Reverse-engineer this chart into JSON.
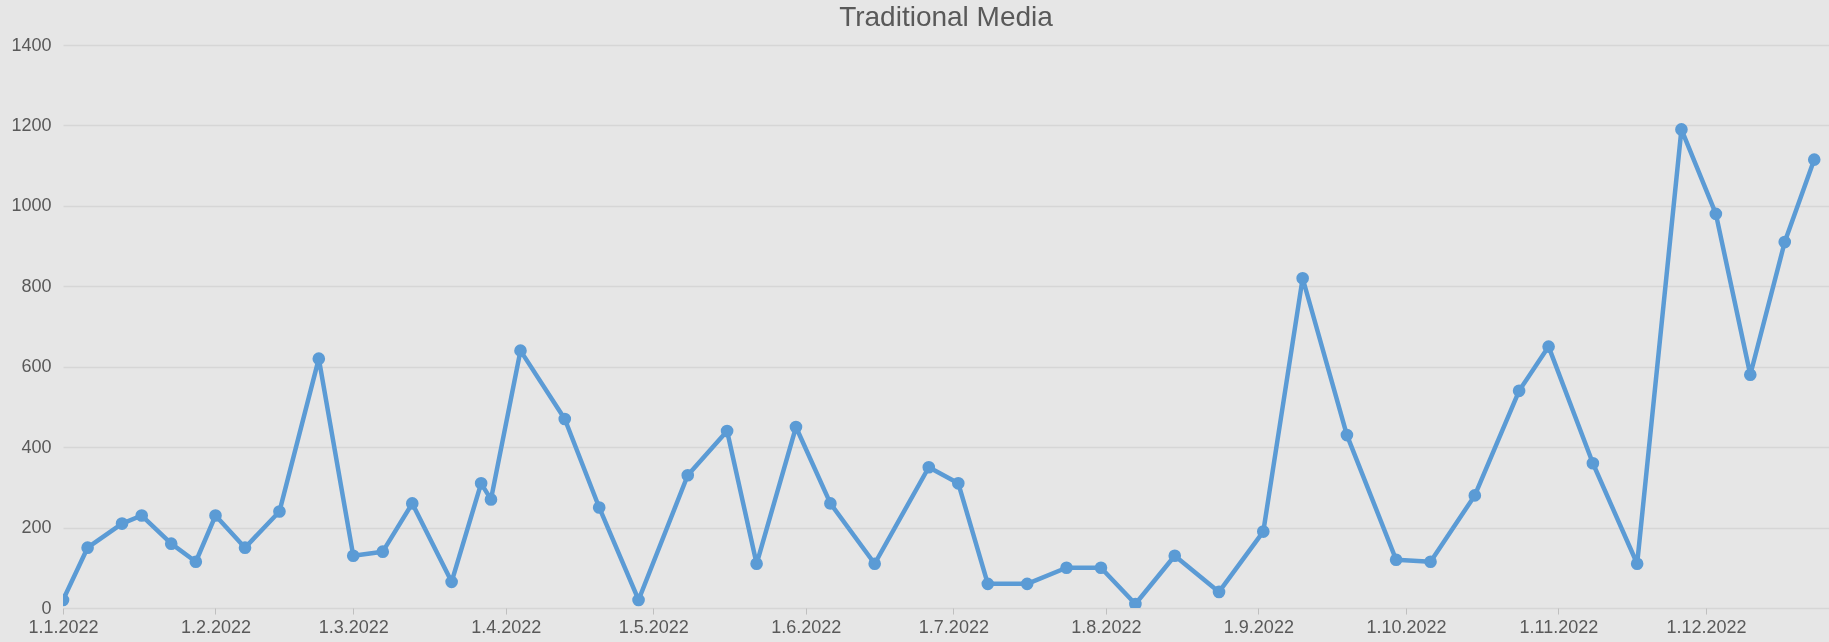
{
  "chart_data": {
    "type": "line",
    "title": "Traditional Media",
    "x": [
      "2022-01-01",
      "2022-01-06",
      "2022-01-13",
      "2022-01-17",
      "2022-01-23",
      "2022-01-28",
      "2022-02-01",
      "2022-02-07",
      "2022-02-14",
      "2022-02-22",
      "2022-03-01",
      "2022-03-07",
      "2022-03-13",
      "2022-03-21",
      "2022-03-27",
      "2022-03-29",
      "2022-04-04",
      "2022-04-13",
      "2022-04-20",
      "2022-04-28",
      "2022-05-08",
      "2022-05-16",
      "2022-05-22",
      "2022-05-30",
      "2022-06-06",
      "2022-06-15",
      "2022-06-26",
      "2022-07-02",
      "2022-07-08",
      "2022-07-16",
      "2022-07-24",
      "2022-07-31",
      "2022-08-07",
      "2022-08-15",
      "2022-08-24",
      "2022-09-02",
      "2022-09-10",
      "2022-09-19",
      "2022-09-29",
      "2022-10-06",
      "2022-10-15",
      "2022-10-24",
      "2022-10-30",
      "2022-11-08",
      "2022-11-17",
      "2022-11-26",
      "2022-12-03",
      "2022-12-10",
      "2022-12-17",
      "2022-12-23"
    ],
    "series": [
      {
        "color": "#5b9bd5",
        "values": [
          20,
          150,
          210,
          230,
          160,
          115,
          230,
          150,
          240,
          620,
          130,
          140,
          260,
          65,
          310,
          270,
          640,
          470,
          250,
          20,
          330,
          440,
          110,
          450,
          260,
          110,
          350,
          310,
          60,
          60,
          100,
          100,
          10,
          130,
          40,
          190,
          820,
          430,
          120,
          115,
          280,
          540,
          650,
          360,
          110,
          1190,
          980,
          580,
          910,
          1115
        ]
      }
    ],
    "xlim": [
      "2022-01-01",
      "2022-12-26"
    ],
    "xticks": [
      {
        "value": "2022-01-01",
        "label": "1.1.2022"
      },
      {
        "value": "2022-02-01",
        "label": "1.2.2022"
      },
      {
        "value": "2022-03-01",
        "label": "1.3.2022"
      },
      {
        "value": "2022-04-01",
        "label": "1.4.2022"
      },
      {
        "value": "2022-05-01",
        "label": "1.5.2022"
      },
      {
        "value": "2022-06-01",
        "label": "1.6.2022"
      },
      {
        "value": "2022-07-01",
        "label": "1.7.2022"
      },
      {
        "value": "2022-08-01",
        "label": "1.8.2022"
      },
      {
        "value": "2022-09-01",
        "label": "1.9.2022"
      },
      {
        "value": "2022-10-01",
        "label": "1.10.2022"
      },
      {
        "value": "2022-11-01",
        "label": "1.11.2022"
      },
      {
        "value": "2022-12-01",
        "label": "1.12.2022"
      }
    ],
    "ylim": [
      0,
      1400
    ],
    "yticks": [
      0,
      200,
      400,
      600,
      800,
      1000,
      1200,
      1400
    ],
    "grid": "y",
    "marker": "circle",
    "line_style": "solid"
  }
}
